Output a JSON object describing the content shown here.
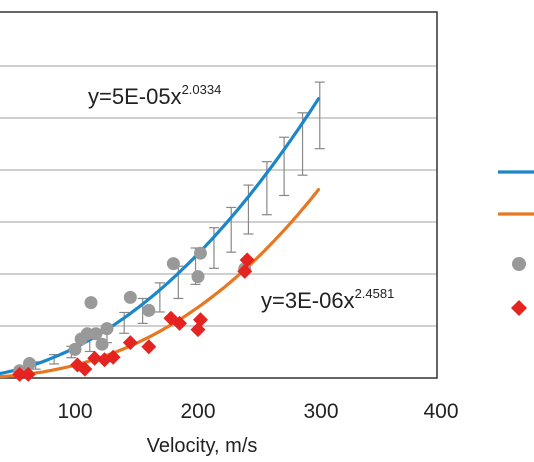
{
  "chart_data": {
    "type": "scatter",
    "xlabel": "Velocity, m/s",
    "x_ticks": [
      "100",
      "200",
      "300",
      "400"
    ],
    "xlim": [
      0,
      400
    ],
    "ylim": [
      0,
      7
    ],
    "grid": true,
    "annotations": {
      "fit_blue": {
        "text": "y=5E-05x",
        "exponent": "2.0334"
      },
      "fit_orange": {
        "text": "y=3E-06x",
        "exponent": "2.4581"
      }
    },
    "fit_lines": [
      {
        "color": "#1b87c9",
        "coefficient": 5e-05,
        "exponent": 2.0334,
        "x_range": [
          0,
          298
        ]
      },
      {
        "color": "#e87722",
        "coefficient": 3e-06,
        "exponent": 2.4581,
        "x_range": [
          0,
          298
        ]
      }
    ],
    "error_bars": {
      "color": "#888888",
      "points": [
        {
          "x": 55,
          "y": 0.15,
          "err": 0.05
        },
        {
          "x": 68,
          "y": 0.24,
          "err": 0.07
        },
        {
          "x": 83,
          "y": 0.36,
          "err": 0.09
        },
        {
          "x": 97,
          "y": 0.5,
          "err": 0.11
        },
        {
          "x": 112,
          "y": 0.65,
          "err": 0.14
        },
        {
          "x": 126,
          "y": 0.85,
          "err": 0.17
        },
        {
          "x": 140,
          "y": 1.06,
          "err": 0.2
        },
        {
          "x": 155,
          "y": 1.29,
          "err": 0.24
        },
        {
          "x": 169,
          "y": 1.55,
          "err": 0.28
        },
        {
          "x": 184,
          "y": 1.84,
          "err": 0.31
        },
        {
          "x": 198,
          "y": 2.15,
          "err": 0.35
        },
        {
          "x": 213,
          "y": 2.5,
          "err": 0.39
        },
        {
          "x": 227,
          "y": 2.85,
          "err": 0.43
        },
        {
          "x": 241,
          "y": 3.24,
          "err": 0.47
        },
        {
          "x": 256,
          "y": 3.65,
          "err": 0.51
        },
        {
          "x": 270,
          "y": 4.07,
          "err": 0.56
        },
        {
          "x": 285,
          "y": 4.5,
          "err": 0.6
        },
        {
          "x": 299,
          "y": 5.05,
          "err": 0.64
        }
      ]
    },
    "series": [
      {
        "color": "#999999",
        "marker": "circle",
        "points": [
          {
            "x": 55,
            "y": 0.14
          },
          {
            "x": 63,
            "y": 0.28
          },
          {
            "x": 100,
            "y": 0.55
          },
          {
            "x": 105,
            "y": 0.75
          },
          {
            "x": 110,
            "y": 0.85
          },
          {
            "x": 113,
            "y": 1.45
          },
          {
            "x": 117,
            "y": 0.85
          },
          {
            "x": 122,
            "y": 0.65
          },
          {
            "x": 126,
            "y": 0.95
          },
          {
            "x": 145,
            "y": 1.55
          },
          {
            "x": 160,
            "y": 1.3
          },
          {
            "x": 180,
            "y": 2.2
          },
          {
            "x": 200,
            "y": 1.95
          },
          {
            "x": 202,
            "y": 2.4
          },
          {
            "x": 238,
            "y": 2.1
          }
        ]
      },
      {
        "color": "#e52421",
        "marker": "diamond",
        "points": [
          {
            "x": 55,
            "y": 0.07
          },
          {
            "x": 62,
            "y": 0.07
          },
          {
            "x": 102,
            "y": 0.25
          },
          {
            "x": 108,
            "y": 0.17
          },
          {
            "x": 116,
            "y": 0.38
          },
          {
            "x": 124,
            "y": 0.35
          },
          {
            "x": 131,
            "y": 0.4
          },
          {
            "x": 145,
            "y": 0.68
          },
          {
            "x": 160,
            "y": 0.6
          },
          {
            "x": 178,
            "y": 1.15
          },
          {
            "x": 185,
            "y": 1.05
          },
          {
            "x": 200,
            "y": 0.93
          },
          {
            "x": 202,
            "y": 1.12
          },
          {
            "x": 238,
            "y": 2.05
          },
          {
            "x": 240,
            "y": 2.27
          }
        ]
      }
    ],
    "legend": {
      "placement": "right",
      "items": [
        {
          "kind": "line",
          "color": "#1b87c9"
        },
        {
          "kind": "line",
          "color": "#e87722"
        },
        {
          "kind": "circle",
          "color": "#999999"
        },
        {
          "kind": "diamond",
          "color": "#e52421"
        }
      ]
    }
  }
}
